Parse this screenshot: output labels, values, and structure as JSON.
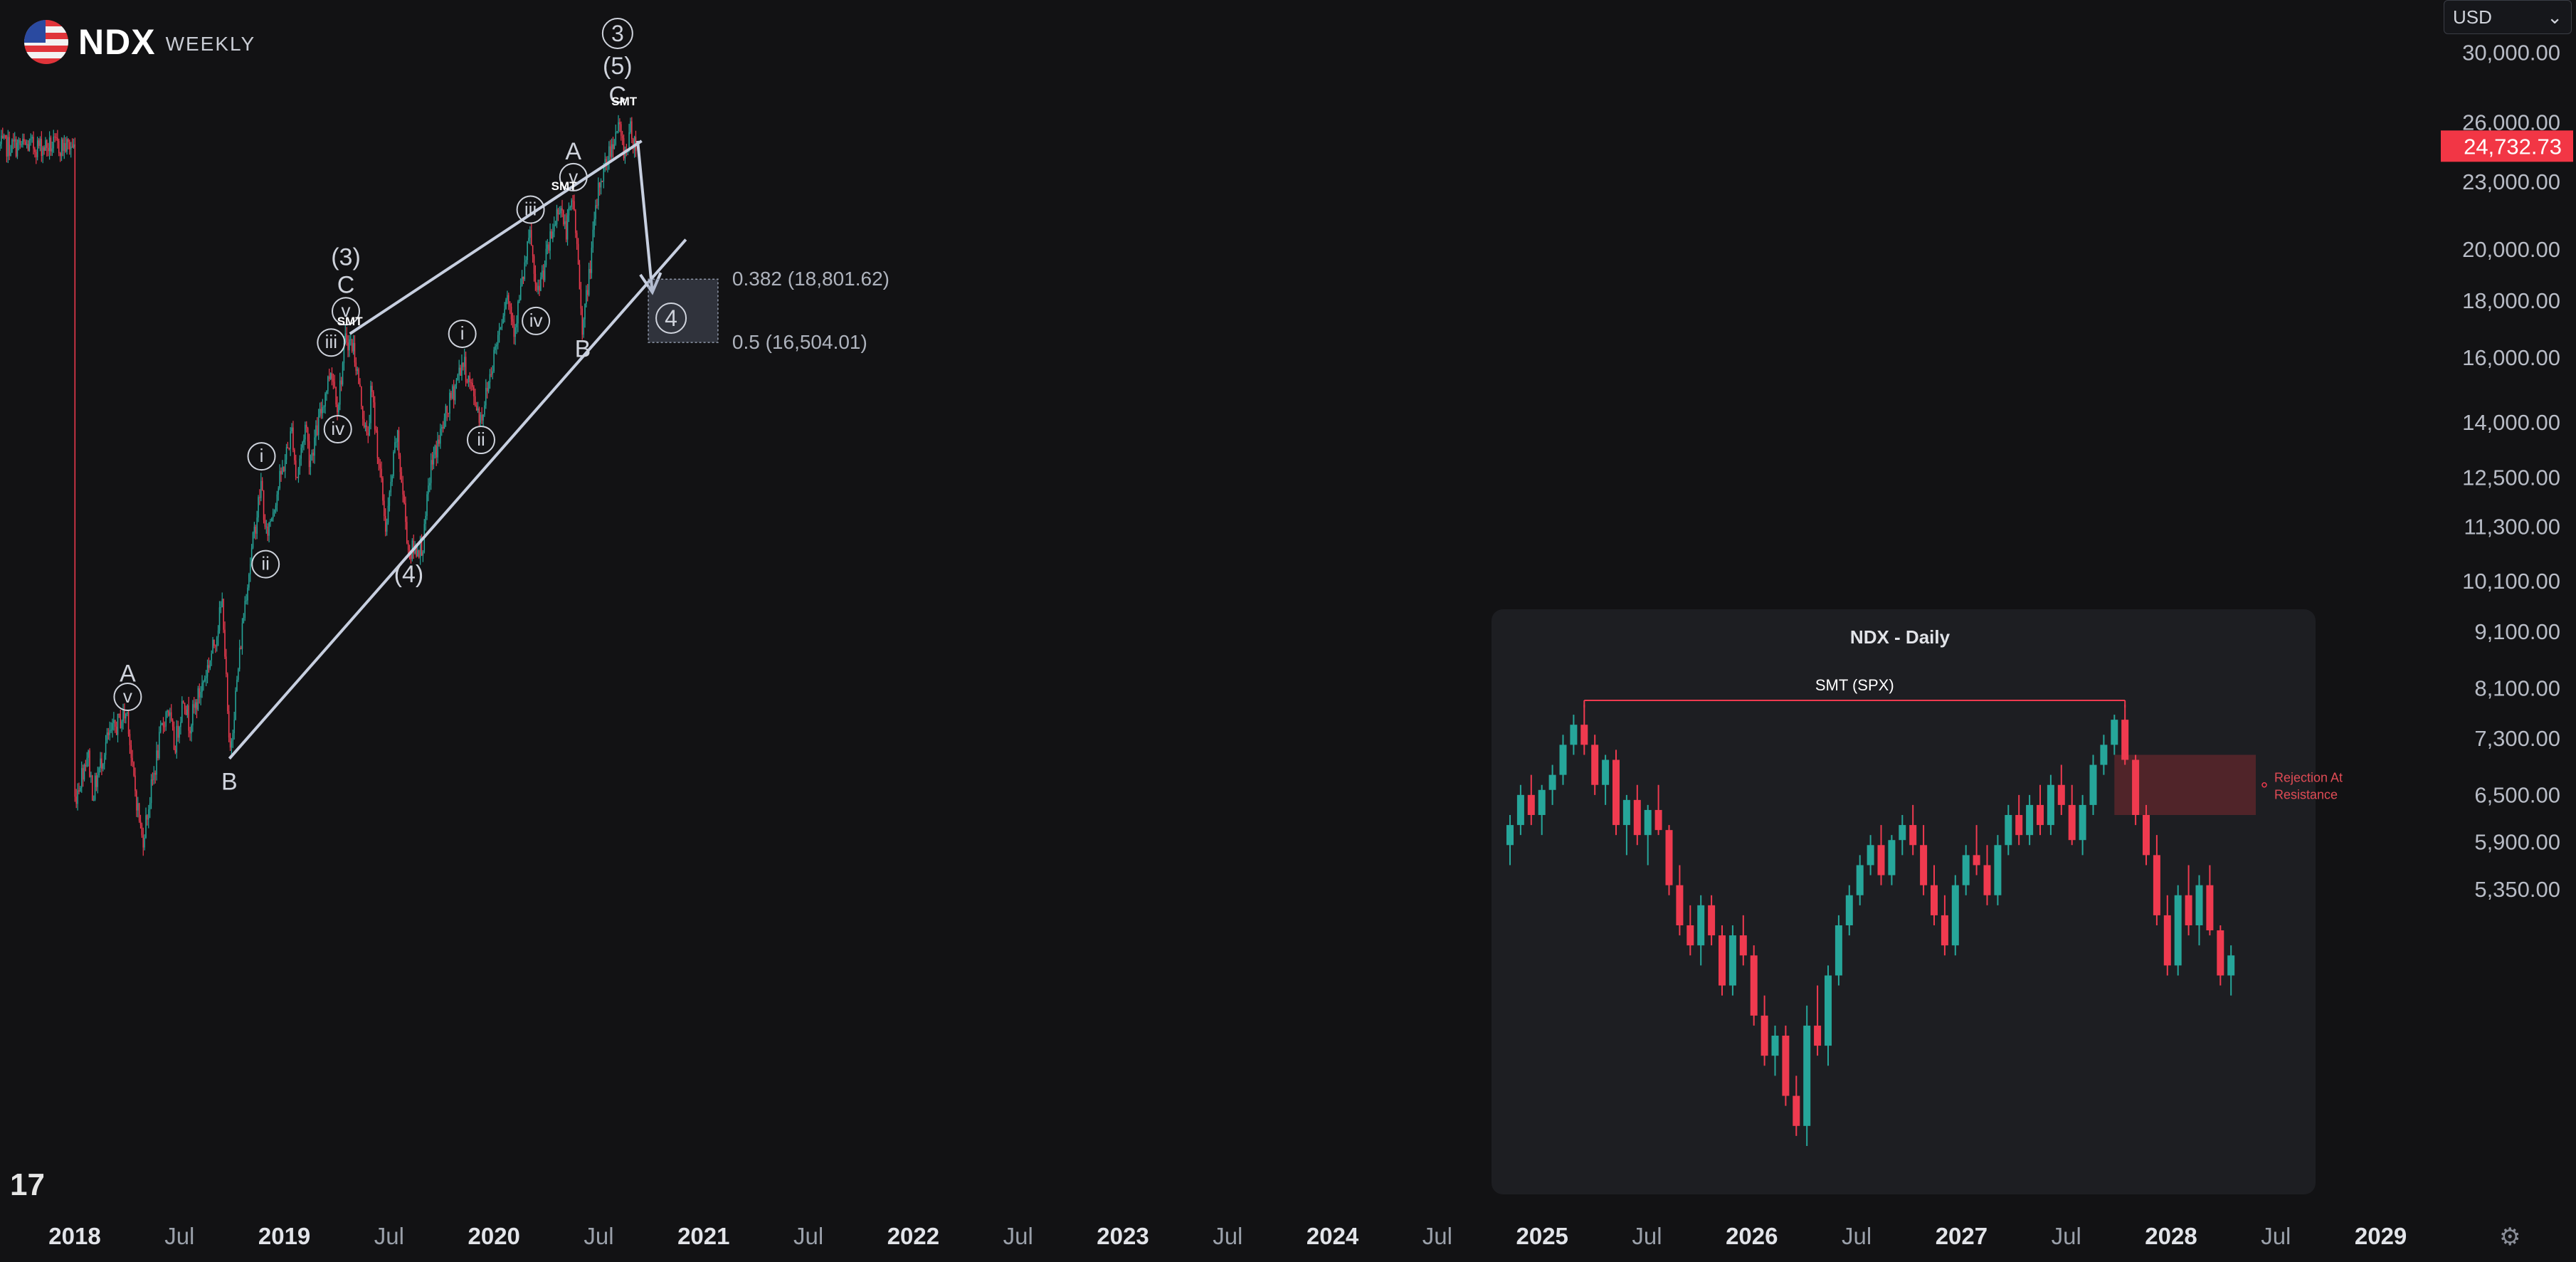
{
  "header": {
    "symbol": "NDX",
    "timeframe": "WEEKLY",
    "currency_label": "USD"
  },
  "colors": {
    "background": "#121214",
    "up": "#26a69a",
    "down": "#ef3a4f",
    "line": "#c7cfe0",
    "text": "#d1d4dc",
    "price_tag": "#f23645"
  },
  "chart_data": [
    {
      "type": "candlestick",
      "y_scale": "log",
      "x_ticks": [
        "2018",
        "Jul",
        "2019",
        "Jul",
        "2020",
        "Jul",
        "2021",
        "Jul",
        "2022",
        "Jul",
        "2023",
        "Jul",
        "2024",
        "Jul",
        "2025",
        "Jul",
        "2026",
        "Jul",
        "2027",
        "Jul",
        "2028",
        "Jul",
        "2029"
      ],
      "y_ticks": [
        "30,000.00",
        "26,000.00",
        "23,000.00",
        "20,000.00",
        "18,000.00",
        "16,000.00",
        "14,000.00",
        "12,500.00",
        "11,300.00",
        "10,100.00",
        "9,100.00",
        "8,100.00",
        "7,300.00",
        "6,500.00",
        "5,900.00",
        "5,350.00"
      ],
      "last_price": "24,732.73",
      "price_path": [
        [
          "2017-12-29",
          6400
        ],
        [
          "2018-03-09",
          7100
        ],
        [
          "2018-04-06",
          6500
        ],
        [
          "2018-06-15",
          7250
        ],
        [
          "2018-08-31",
          7600
        ],
        [
          "2018-10-05",
          7700
        ],
        [
          "2018-10-26",
          6900
        ],
        [
          "2018-12-21",
          5900
        ],
        [
          "2019-03-29",
          7400
        ],
        [
          "2019-05-03",
          7800
        ],
        [
          "2019-06-07",
          7150
        ],
        [
          "2019-07-26",
          8000
        ],
        [
          "2019-08-23",
          7500
        ],
        [
          "2019-10-25",
          8100
        ],
        [
          "2019-12-27",
          8800
        ],
        [
          "2020-02-14",
          9700
        ],
        [
          "2020-03-20",
          7000
        ],
        [
          "2020-06-12",
          9800
        ],
        [
          "2020-09-04",
          12400
        ],
        [
          "2020-09-25",
          11000
        ],
        [
          "2021-02-12",
          13800
        ],
        [
          "2021-03-05",
          12400
        ],
        [
          "2021-04-23",
          14000
        ],
        [
          "2021-05-14",
          12900
        ],
        [
          "2021-09-03",
          15700
        ],
        [
          "2021-10-08",
          14500
        ],
        [
          "2021-11-19",
          16700
        ],
        [
          "2021-12-31",
          16300
        ],
        [
          "2022-03-11",
          13400
        ],
        [
          "2022-04-01",
          15000
        ],
        [
          "2022-06-17",
          11200
        ],
        [
          "2022-08-12",
          13700
        ],
        [
          "2022-10-14",
          10700
        ],
        [
          "2022-12-30",
          10900
        ],
        [
          "2023-02-03",
          12700
        ],
        [
          "2023-07-21",
          15900
        ],
        [
          "2023-10-27",
          14100
        ],
        [
          "2024-03-08",
          18300
        ],
        [
          "2024-04-19",
          17000
        ],
        [
          "2024-07-12",
          20700
        ],
        [
          "2024-08-09",
          18000
        ],
        [
          "2024-12-13",
          22100
        ],
        [
          "2025-01-10",
          20700
        ],
        [
          "2025-02-21",
          22200
        ],
        [
          "2025-04-11",
          16900
        ],
        [
          "2025-07-04",
          22800
        ],
        [
          "2025-10-10",
          25800
        ],
        [
          "2025-11-21",
          24300
        ],
        [
          "2025-12-12",
          25600
        ],
        [
          "2026-01-16",
          24732
        ]
      ],
      "annotations": {
        "wave_labels": [
          {
            "text": "A",
            "date": "2018-10-05",
            "price": 8350,
            "style": "plain"
          },
          {
            "text": "v",
            "date": "2018-10-05",
            "price": 7950,
            "style": "circle"
          },
          {
            "text": "B",
            "date": "2020-03-20",
            "price": 6680,
            "style": "plain"
          },
          {
            "text": "i",
            "date": "2020-09-04",
            "price": 13050,
            "style": "circle"
          },
          {
            "text": "ii",
            "date": "2020-09-25",
            "price": 10450,
            "style": "circle"
          },
          {
            "text": "iii",
            "date": "2021-09-03",
            "price": 16500,
            "style": "circle"
          },
          {
            "text": "iv",
            "date": "2021-10-08",
            "price": 13800,
            "style": "circle"
          },
          {
            "text": "v",
            "date": "2021-11-19",
            "price": 17600,
            "style": "circle"
          },
          {
            "text": "C",
            "date": "2021-11-19",
            "price": 18600,
            "style": "plain"
          },
          {
            "text": "(3)",
            "date": "2021-11-19",
            "price": 19700,
            "style": "plain"
          },
          {
            "text": "(4)",
            "date": "2022-10-14",
            "price": 10250,
            "style": "plain"
          },
          {
            "text": "i",
            "date": "2023-07-21",
            "price": 16800,
            "style": "circle"
          },
          {
            "text": "ii",
            "date": "2023-10-27",
            "price": 13500,
            "style": "circle"
          },
          {
            "text": "iii",
            "date": "2024-07-12",
            "price": 21700,
            "style": "circle"
          },
          {
            "text": "iv",
            "date": "2024-08-09",
            "price": 17250,
            "style": "circle"
          },
          {
            "text": "v",
            "date": "2025-02-21",
            "price": 23200,
            "style": "circle"
          },
          {
            "text": "A",
            "date": "2025-02-21",
            "price": 24500,
            "style": "plain"
          },
          {
            "text": "B",
            "date": "2025-04-11",
            "price": 16300,
            "style": "plain"
          },
          {
            "text": "C",
            "date": "2025-10-10",
            "price": 27500,
            "style": "plain"
          },
          {
            "text": "(5)",
            "date": "2025-10-10",
            "price": 29200,
            "style": "plain"
          },
          {
            "text": "3",
            "date": "2025-10-10",
            "price": 31200,
            "style": "circle"
          },
          {
            "text": "4",
            "date": "2026-07-17",
            "price": 17350,
            "style": "circle"
          }
        ],
        "smt_labels": [
          {
            "text": "SMT",
            "date": "2021-12-10",
            "price": 17100
          },
          {
            "text": "SMT",
            "date": "2025-01-03",
            "price": 22600
          },
          {
            "text": "SMT",
            "date": "2025-11-14",
            "price": 26900
          }
        ],
        "fib_levels": [
          {
            "text": "0.382 (18,801.62)",
            "price": 18801.62
          },
          {
            "text": "0.5 (16,504.01)",
            "price": 16504.01
          }
        ],
        "trendlines": {
          "upper": [
            [
              "2021-12-10",
              16800
            ],
            [
              "2026-02-13",
              25000
            ]
          ],
          "lower": [
            [
              "2020-03-20",
              7000
            ],
            [
              "2026-10-02",
              20400
            ]
          ]
        },
        "arrow": [
          [
            "2026-01-23",
            25000
          ],
          [
            "2026-04-10",
            18300
          ]
        ],
        "target_zone": {
          "from": "2026-03-20",
          "to": "2027-03-19"
        }
      }
    },
    {
      "type": "candlestick",
      "title": "NDX - Daily",
      "annotations": [
        {
          "text": "SMT (SPX)",
          "type": "horizontal-line"
        },
        {
          "text": "Rejection At Resistance",
          "type": "zone"
        }
      ],
      "candles": [
        [
          17800,
          18100,
          17600,
          18000
        ],
        [
          18000,
          18400,
          17900,
          18300
        ],
        [
          18300,
          18500,
          18000,
          18100
        ],
        [
          18100,
          18400,
          17900,
          18350
        ],
        [
          18350,
          18600,
          18200,
          18500
        ],
        [
          18500,
          18900,
          18400,
          18800
        ],
        [
          18800,
          19100,
          18700,
          19000
        ],
        [
          19000,
          19200,
          18700,
          18800
        ],
        [
          18800,
          18900,
          18300,
          18400
        ],
        [
          18400,
          18700,
          18200,
          18650
        ],
        [
          18650,
          18750,
          17900,
          18000
        ],
        [
          18000,
          18300,
          17700,
          18250
        ],
        [
          18250,
          18400,
          17800,
          17900
        ],
        [
          17900,
          18200,
          17600,
          18150
        ],
        [
          18150,
          18400,
          17900,
          17950
        ],
        [
          17950,
          18000,
          17300,
          17400
        ],
        [
          17400,
          17600,
          16900,
          17000
        ],
        [
          17000,
          17200,
          16700,
          16800
        ],
        [
          16800,
          17300,
          16600,
          17200
        ],
        [
          17200,
          17300,
          16800,
          16900
        ],
        [
          16900,
          17000,
          16300,
          16400
        ],
        [
          16400,
          17000,
          16300,
          16900
        ],
        [
          16900,
          17100,
          16600,
          16700
        ],
        [
          16700,
          16800,
          16000,
          16100
        ],
        [
          16100,
          16300,
          15600,
          15700
        ],
        [
          15700,
          16000,
          15500,
          15900
        ],
        [
          15900,
          16000,
          15200,
          15300
        ],
        [
          15300,
          15500,
          14900,
          15000
        ],
        [
          15000,
          16200,
          14800,
          16000
        ],
        [
          16000,
          16400,
          15700,
          15800
        ],
        [
          15800,
          16600,
          15600,
          16500
        ],
        [
          16500,
          17100,
          16400,
          17000
        ],
        [
          17000,
          17400,
          16900,
          17300
        ],
        [
          17300,
          17700,
          17200,
          17600
        ],
        [
          17600,
          17900,
          17500,
          17800
        ],
        [
          17800,
          18000,
          17400,
          17500
        ],
        [
          17500,
          17900,
          17400,
          17850
        ],
        [
          17850,
          18100,
          17700,
          18000
        ],
        [
          18000,
          18200,
          17700,
          17800
        ],
        [
          17800,
          18000,
          17300,
          17400
        ],
        [
          17400,
          17600,
          17000,
          17100
        ],
        [
          17100,
          17300,
          16700,
          16800
        ],
        [
          16800,
          17500,
          16700,
          17400
        ],
        [
          17400,
          17800,
          17300,
          17700
        ],
        [
          17700,
          18000,
          17500,
          17600
        ],
        [
          17600,
          17800,
          17200,
          17300
        ],
        [
          17300,
          17900,
          17200,
          17800
        ],
        [
          17800,
          18200,
          17700,
          18100
        ],
        [
          18100,
          18300,
          17800,
          17900
        ],
        [
          17900,
          18300,
          17800,
          18200
        ],
        [
          18200,
          18400,
          17900,
          18000
        ],
        [
          18000,
          18500,
          17900,
          18400
        ],
        [
          18400,
          18600,
          18100,
          18200
        ],
        [
          18200,
          18400,
          17800,
          17850
        ],
        [
          17850,
          18300,
          17700,
          18200
        ],
        [
          18200,
          18700,
          18100,
          18600
        ],
        [
          18600,
          18900,
          18500,
          18800
        ],
        [
          18800,
          19100,
          18700,
          19050
        ],
        [
          19050,
          19200,
          18600,
          18650
        ],
        [
          18650,
          18700,
          18000,
          18100
        ],
        [
          18100,
          18200,
          17600,
          17700
        ],
        [
          17700,
          17900,
          17000,
          17100
        ],
        [
          17100,
          17300,
          16500,
          16600
        ],
        [
          16600,
          17400,
          16500,
          17300
        ],
        [
          17300,
          17600,
          16900,
          17000
        ],
        [
          17000,
          17500,
          16800,
          17400
        ],
        [
          17400,
          17600,
          16900,
          16950
        ],
        [
          16950,
          17000,
          16400,
          16500
        ],
        [
          16500,
          16800,
          16300,
          16700
        ]
      ]
    }
  ],
  "footer": {
    "tv_logo": "17",
    "settings_icon": "gear-icon"
  }
}
